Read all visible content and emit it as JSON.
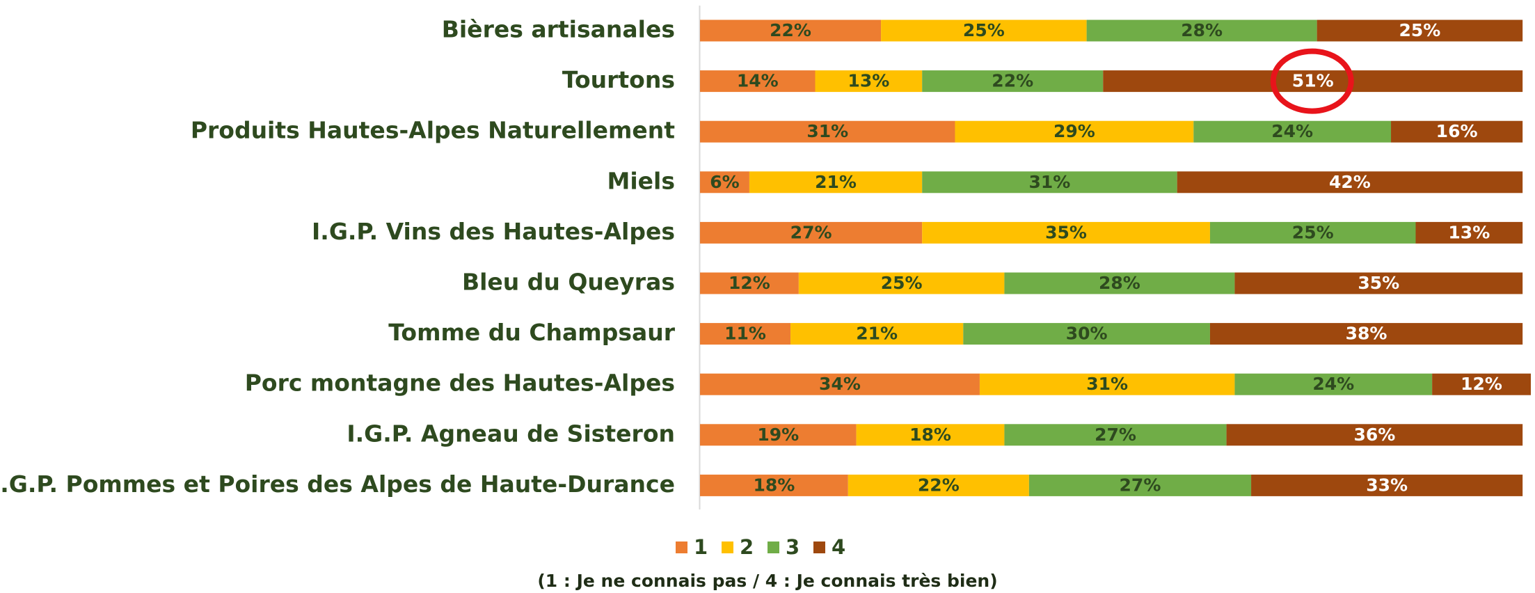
{
  "chart_data": {
    "type": "stacked_bar_horizontal",
    "categories": [
      "Bières artisanales",
      "Tourtons",
      "Produits Hautes-Alpes Naturellement",
      "Miels",
      "I.G.P. Vins des Hautes-Alpes",
      "Bleu du Queyras",
      "Tomme du Champsaur",
      "Porc montagne des Hautes-Alpes",
      "I.G.P. Agneau de Sisteron",
      "I.G.P. Pommes et Poires des Alpes de Haute-Durance"
    ],
    "series": [
      {
        "name": "1",
        "color": "#ED7D31",
        "values": [
          22,
          14,
          31,
          6,
          27,
          12,
          11,
          34,
          19,
          18
        ],
        "value_labels": [
          "22%",
          "14%",
          "31%",
          "6%",
          "27%",
          "12%",
          "11%",
          "34%",
          "19%",
          "18%"
        ]
      },
      {
        "name": "2",
        "color": "#FFC000",
        "values": [
          25,
          13,
          29,
          21,
          35,
          25,
          21,
          31,
          18,
          22
        ],
        "value_labels": [
          "25%",
          "13%",
          "29%",
          "21%",
          "35%",
          "25%",
          "21%",
          "31%",
          "18%",
          "22%"
        ]
      },
      {
        "name": "3",
        "color": "#70AD47",
        "values": [
          28,
          22,
          24,
          31,
          25,
          28,
          30,
          24,
          27,
          27
        ],
        "value_labels": [
          "28%",
          "22%",
          "24%",
          "31%",
          "25%",
          "28%",
          "30%",
          "24%",
          "27%",
          "27%"
        ]
      },
      {
        "name": "4",
        "color": "#9E480E",
        "values": [
          25,
          51,
          16,
          42,
          13,
          35,
          38,
          12,
          36,
          33
        ],
        "value_labels": [
          "25%",
          "51%",
          "16%",
          "42%",
          "13%",
          "35%",
          "38%",
          "12%",
          "36%",
          "33%"
        ]
      }
    ],
    "legend": "bottom",
    "annotation": "(1 : Je ne connais pas / 4 : Je connais très bien)"
  }
}
